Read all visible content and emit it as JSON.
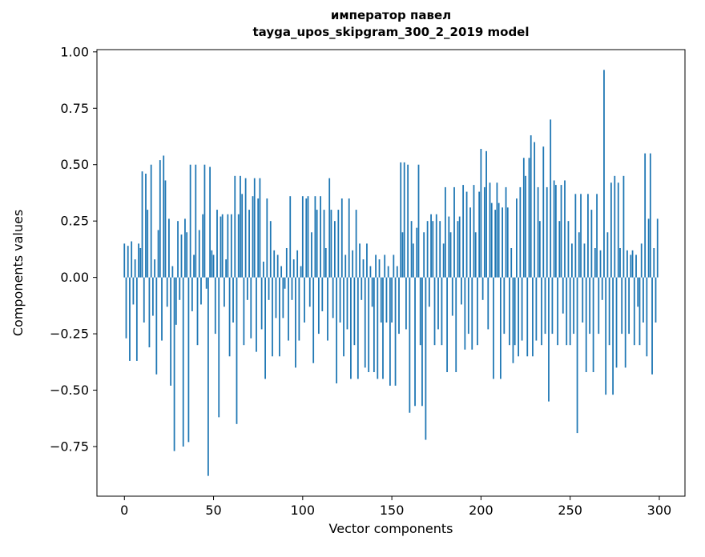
{
  "chart_data": {
    "type": "bar",
    "title": "император павел",
    "subtitle": "tayga_upos_skipgram_300_2_2019 model",
    "xlabel": "Vector components",
    "ylabel": "Components values",
    "bar_color": "#1f77b4",
    "xlim": [
      -15.4,
      314.4
    ],
    "ylim": [
      -0.97,
      1.01
    ],
    "x_tick_values": [
      0,
      50,
      100,
      150,
      200,
      250,
      300
    ],
    "x_tick_labels": [
      "0",
      "50",
      "100",
      "150",
      "200",
      "250",
      "300"
    ],
    "y_tick_values": [
      1.0,
      0.75,
      0.5,
      0.25,
      0.0,
      -0.25,
      -0.5,
      -0.75
    ],
    "y_tick_labels": [
      "1.00",
      "0.75",
      "0.50",
      "0.25",
      "0.00",
      "−0.25",
      "−0.50",
      "−0.75"
    ],
    "values": [
      0.15,
      -0.27,
      0.14,
      -0.37,
      0.16,
      -0.12,
      0.08,
      -0.37,
      0.15,
      0.13,
      0.47,
      -0.2,
      0.46,
      0.3,
      -0.31,
      0.5,
      -0.17,
      0.08,
      -0.43,
      0.21,
      0.52,
      -0.28,
      0.54,
      0.43,
      -0.13,
      0.26,
      -0.48,
      0.05,
      -0.77,
      -0.21,
      0.25,
      -0.1,
      0.19,
      -0.75,
      0.26,
      0.2,
      -0.73,
      0.5,
      -0.15,
      0.1,
      0.5,
      -0.3,
      0.21,
      -0.12,
      0.28,
      0.5,
      -0.05,
      -0.88,
      0.49,
      0.12,
      0.1,
      -0.25,
      0.3,
      -0.62,
      0.27,
      0.28,
      -0.13,
      0.08,
      0.28,
      -0.35,
      0.28,
      -0.2,
      0.45,
      -0.65,
      0.28,
      0.45,
      0.37,
      -0.3,
      0.44,
      -0.1,
      0.3,
      -0.27,
      0.36,
      0.44,
      -0.33,
      0.35,
      0.44,
      -0.23,
      0.07,
      -0.45,
      0.35,
      -0.1,
      0.25,
      -0.35,
      0.12,
      -0.18,
      0.1,
      -0.35,
      0.05,
      -0.18,
      -0.05,
      0.13,
      -0.28,
      0.36,
      -0.1,
      0.08,
      -0.4,
      0.12,
      -0.28,
      0.05,
      0.36,
      -0.2,
      0.35,
      0.36,
      -0.13,
      0.2,
      -0.38,
      0.36,
      0.3,
      -0.25,
      0.36,
      -0.15,
      0.3,
      0.13,
      -0.28,
      0.44,
      0.3,
      -0.18,
      0.25,
      -0.47,
      0.3,
      -0.2,
      0.35,
      -0.35,
      0.1,
      -0.23,
      0.35,
      -0.45,
      0.12,
      -0.3,
      0.3,
      -0.45,
      0.15,
      -0.1,
      0.08,
      -0.4,
      0.15,
      -0.42,
      0.05,
      -0.13,
      -0.42,
      0.1,
      -0.45,
      0.08,
      -0.2,
      -0.45,
      0.1,
      -0.2,
      0.05,
      -0.48,
      -0.2,
      0.1,
      -0.48,
      0.05,
      -0.25,
      0.51,
      0.2,
      0.51,
      -0.23,
      0.5,
      -0.6,
      0.25,
      0.15,
      -0.57,
      0.22,
      0.5,
      -0.3,
      -0.57,
      0.2,
      -0.72,
      0.25,
      -0.13,
      0.28,
      0.25,
      -0.3,
      0.28,
      -0.23,
      0.25,
      -0.3,
      0.15,
      0.4,
      -0.42,
      0.27,
      0.2,
      -0.17,
      0.4,
      -0.42,
      0.25,
      0.27,
      -0.12,
      0.41,
      -0.32,
      0.38,
      -0.25,
      0.31,
      -0.32,
      0.41,
      0.2,
      -0.3,
      0.38,
      0.57,
      -0.1,
      0.4,
      0.56,
      -0.23,
      0.42,
      0.33,
      -0.45,
      0.3,
      0.42,
      0.33,
      -0.45,
      0.31,
      -0.25,
      0.4,
      0.31,
      -0.3,
      0.13,
      -0.38,
      -0.3,
      0.35,
      -0.35,
      0.4,
      -0.28,
      0.53,
      0.45,
      -0.35,
      0.53,
      0.63,
      -0.35,
      0.6,
      -0.28,
      0.4,
      0.25,
      -0.3,
      0.58,
      -0.25,
      0.4,
      -0.55,
      0.7,
      -0.25,
      0.43,
      0.41,
      -0.3,
      0.25,
      0.41,
      -0.16,
      0.43,
      -0.3,
      0.25,
      -0.3,
      0.15,
      -0.25,
      0.37,
      -0.69,
      0.2,
      0.37,
      -0.2,
      0.15,
      -0.42,
      0.37,
      -0.25,
      0.3,
      -0.42,
      0.13,
      0.37,
      -0.25,
      0.12,
      -0.1,
      0.92,
      -0.52,
      0.2,
      -0.3,
      0.42,
      -0.52,
      0.45,
      -0.4,
      0.42,
      0.13,
      -0.25,
      0.45,
      -0.4,
      0.12,
      -0.25,
      0.1,
      0.12,
      -0.3,
      0.1,
      -0.13,
      -0.3,
      0.15,
      -0.2,
      0.55,
      -0.35,
      0.26,
      0.55,
      -0.43,
      0.13,
      -0.2,
      0.26
    ]
  }
}
